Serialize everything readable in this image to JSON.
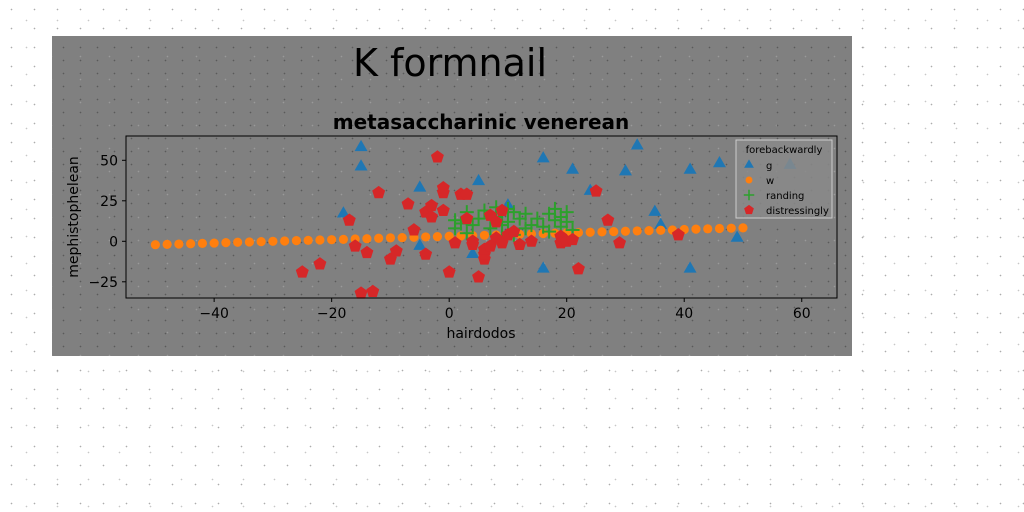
{
  "figure": {
    "suptitle": "K formnail"
  },
  "chart_data": {
    "type": "scatter",
    "title": "metasaccharinic venerean",
    "xlabel": "hairdodos",
    "ylabel": "mephistophelean",
    "xlim": [
      -55,
      66
    ],
    "ylim": [
      -35,
      65
    ],
    "xticks": [
      -40,
      -20,
      0,
      20,
      40,
      60
    ],
    "yticks": [
      -25,
      0,
      25,
      50
    ],
    "grid": false,
    "legend": {
      "title": "forebackwardly",
      "position": "top-right"
    },
    "colors": {
      "background": "#808080",
      "g": "#1f77b4",
      "w": "#ff7f0e",
      "randing": "#2ca02c",
      "distressingly": "#d62728"
    },
    "series": [
      {
        "name": "g",
        "marker": "triangle",
        "points": [
          [
            -15,
            58
          ],
          [
            -15,
            46
          ],
          [
            -18,
            17
          ],
          [
            -5,
            33
          ],
          [
            -5,
            -3
          ],
          [
            5,
            37
          ],
          [
            4,
            -8
          ],
          [
            16,
            51
          ],
          [
            16,
            -17
          ],
          [
            21,
            44
          ],
          [
            24,
            31
          ],
          [
            30,
            43
          ],
          [
            32,
            59
          ],
          [
            35,
            18
          ],
          [
            36,
            10
          ],
          [
            41,
            44
          ],
          [
            41,
            -17
          ],
          [
            46,
            48
          ],
          [
            49,
            2
          ],
          [
            58,
            47
          ],
          [
            10,
            22
          ]
        ]
      },
      {
        "name": "w",
        "marker": "circle",
        "points": [
          [
            -50,
            -2.1
          ],
          [
            -48,
            -1.9
          ],
          [
            -46,
            -1.7
          ],
          [
            -44,
            -1.5
          ],
          [
            -42,
            -1.3
          ],
          [
            -40,
            -1.1
          ],
          [
            -38,
            -0.8
          ],
          [
            -36,
            -0.6
          ],
          [
            -34,
            -0.4
          ],
          [
            -32,
            -0.2
          ],
          [
            -30,
            0.0
          ],
          [
            -28,
            0.2
          ],
          [
            -26,
            0.4
          ],
          [
            -24,
            0.6
          ],
          [
            -22,
            0.8
          ],
          [
            -20,
            1.0
          ],
          [
            -18,
            1.2
          ],
          [
            -16,
            1.4
          ],
          [
            -14,
            1.6
          ],
          [
            -12,
            1.9
          ],
          [
            -10,
            2.1
          ],
          [
            -8,
            2.3
          ],
          [
            -6,
            2.5
          ],
          [
            -4,
            2.7
          ],
          [
            -2,
            2.9
          ],
          [
            0,
            3.1
          ],
          [
            2,
            3.3
          ],
          [
            4,
            3.5
          ],
          [
            6,
            3.7
          ],
          [
            8,
            3.9
          ],
          [
            10,
            4.1
          ],
          [
            12,
            4.3
          ],
          [
            14,
            4.6
          ],
          [
            16,
            4.8
          ],
          [
            18,
            5.0
          ],
          [
            20,
            5.2
          ],
          [
            22,
            5.4
          ],
          [
            24,
            5.6
          ],
          [
            26,
            5.8
          ],
          [
            28,
            6.0
          ],
          [
            30,
            6.2
          ],
          [
            32,
            6.4
          ],
          [
            34,
            6.6
          ],
          [
            36,
            6.8
          ],
          [
            38,
            7.0
          ],
          [
            40,
            7.3
          ],
          [
            42,
            7.5
          ],
          [
            44,
            7.7
          ],
          [
            46,
            7.9
          ],
          [
            48,
            8.1
          ],
          [
            50,
            8.3
          ]
        ]
      },
      {
        "name": "randing",
        "marker": "plus",
        "points": [
          [
            1,
            8
          ],
          [
            1,
            13
          ],
          [
            3,
            5
          ],
          [
            3,
            18
          ],
          [
            4,
            10
          ],
          [
            5,
            14
          ],
          [
            6,
            19
          ],
          [
            7,
            8
          ],
          [
            8,
            21
          ],
          [
            8,
            15
          ],
          [
            9,
            10
          ],
          [
            10,
            20
          ],
          [
            10,
            12
          ],
          [
            11,
            18
          ],
          [
            11,
            4
          ],
          [
            12,
            14
          ],
          [
            13,
            8
          ],
          [
            13,
            17
          ],
          [
            14,
            10
          ],
          [
            15,
            14
          ],
          [
            16,
            9
          ],
          [
            17,
            17
          ],
          [
            17,
            6
          ],
          [
            18,
            13
          ],
          [
            18,
            20
          ],
          [
            19,
            9
          ],
          [
            19,
            15
          ],
          [
            20,
            18
          ],
          [
            20,
            12
          ],
          [
            21,
            7
          ],
          [
            9,
            3
          ],
          [
            2,
            11
          ]
        ]
      },
      {
        "name": "distressingly",
        "marker": "pentagon",
        "points": [
          [
            -25,
            -19
          ],
          [
            -22,
            -14
          ],
          [
            -17,
            13
          ],
          [
            -15,
            -32
          ],
          [
            -13,
            -31
          ],
          [
            -14,
            -7
          ],
          [
            -16,
            -3
          ],
          [
            -12,
            30
          ],
          [
            -10,
            -11
          ],
          [
            -9,
            -6
          ],
          [
            -7,
            23
          ],
          [
            -6,
            7
          ],
          [
            -4,
            18
          ],
          [
            -4,
            -8
          ],
          [
            -3,
            22
          ],
          [
            -3,
            15
          ],
          [
            -2,
            52
          ],
          [
            -1,
            30
          ],
          [
            -1,
            19
          ],
          [
            -1,
            33
          ],
          [
            0,
            -19
          ],
          [
            1,
            -1
          ],
          [
            2,
            29
          ],
          [
            3,
            29
          ],
          [
            3,
            14
          ],
          [
            4,
            0
          ],
          [
            4,
            -2
          ],
          [
            5,
            -22
          ],
          [
            6,
            -11
          ],
          [
            6,
            -8
          ],
          [
            6,
            -5
          ],
          [
            7,
            16
          ],
          [
            8,
            12
          ],
          [
            8,
            2
          ],
          [
            9,
            -1
          ],
          [
            9,
            19
          ],
          [
            10,
            4
          ],
          [
            11,
            6
          ],
          [
            14,
            0
          ],
          [
            19,
            3
          ],
          [
            19,
            -1
          ],
          [
            20,
            0
          ],
          [
            21,
            1
          ],
          [
            22,
            -17
          ],
          [
            25,
            31
          ],
          [
            27,
            13
          ],
          [
            29,
            -1
          ],
          [
            39,
            4
          ],
          [
            7,
            -3
          ],
          [
            12,
            -2
          ]
        ]
      }
    ]
  }
}
